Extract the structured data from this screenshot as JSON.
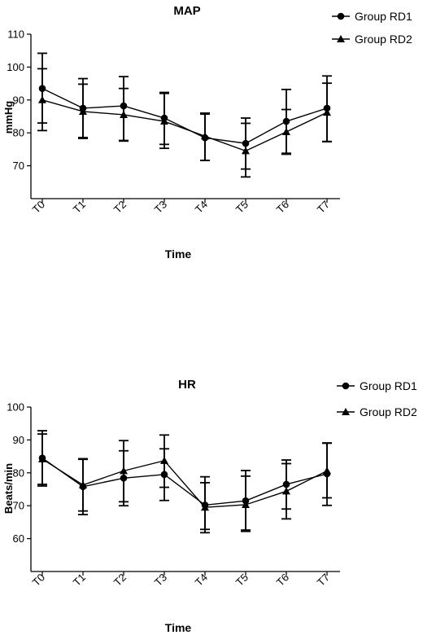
{
  "chart_data": [
    {
      "type": "line",
      "title": "MAP",
      "xlabel": "Time",
      "ylabel": "mmHg",
      "categories": [
        "T0",
        "T1",
        "T2",
        "T3",
        "T4",
        "T5",
        "T6",
        "T7"
      ],
      "ylim": [
        60,
        110
      ],
      "yticks": [
        "70",
        "80",
        "90",
        "100",
        "110"
      ],
      "grid": false,
      "legend_position": "top-right",
      "series": [
        {
          "name": "Group RD1",
          "marker": "circle",
          "values": [
            93.5,
            87.5,
            88.2,
            84.5,
            78.5,
            76.8,
            83.5,
            87.5
          ],
          "err_low": [
            83.0,
            78.3,
            77.7,
            76.5,
            71.6,
            69.0,
            73.5,
            77.3
          ],
          "err_high": [
            104.2,
            96.5,
            97.1,
            92.3,
            86.0,
            84.5,
            93.2,
            97.3
          ]
        },
        {
          "name": "Group RD2",
          "marker": "triangle",
          "values": [
            90.0,
            86.5,
            85.5,
            83.5,
            79.0,
            74.5,
            80.3,
            86.2
          ],
          "err_low": [
            80.7,
            78.6,
            77.5,
            75.3,
            71.6,
            66.6,
            73.8,
            77.4
          ],
          "err_high": [
            99.5,
            94.8,
            93.5,
            92.0,
            85.7,
            82.9,
            87.1,
            95.1
          ]
        }
      ]
    },
    {
      "type": "line",
      "title": "HR",
      "xlabel": "Time",
      "ylabel": "Beats/min",
      "categories": [
        "T0",
        "T1",
        "T2",
        "T3",
        "T4",
        "T5",
        "T6",
        "T7"
      ],
      "ylim": [
        50,
        100
      ],
      "yticks": [
        "60",
        "70",
        "80",
        "90",
        "100"
      ],
      "grid": false,
      "legend_position": "top-right",
      "series": [
        {
          "name": "Group RD1",
          "marker": "circle",
          "values": [
            84.5,
            75.8,
            78.4,
            79.5,
            70.2,
            71.5,
            76.5,
            79.7
          ],
          "err_low": [
            76.5,
            67.3,
            70.0,
            71.6,
            61.8,
            62.2,
            69.0,
            70.1
          ],
          "err_high": [
            92.8,
            84.3,
            86.7,
            87.3,
            78.8,
            80.7,
            83.9,
            89.0
          ]
        },
        {
          "name": "Group RD2",
          "marker": "triangle",
          "values": [
            84.2,
            76.3,
            80.6,
            83.7,
            69.5,
            70.3,
            74.4,
            80.6
          ],
          "err_low": [
            76.0,
            68.4,
            71.2,
            75.6,
            62.8,
            62.6,
            66.0,
            72.4
          ],
          "err_high": [
            91.8,
            84.1,
            89.8,
            91.5,
            77.0,
            79.0,
            82.8,
            89.1
          ]
        }
      ]
    }
  ]
}
